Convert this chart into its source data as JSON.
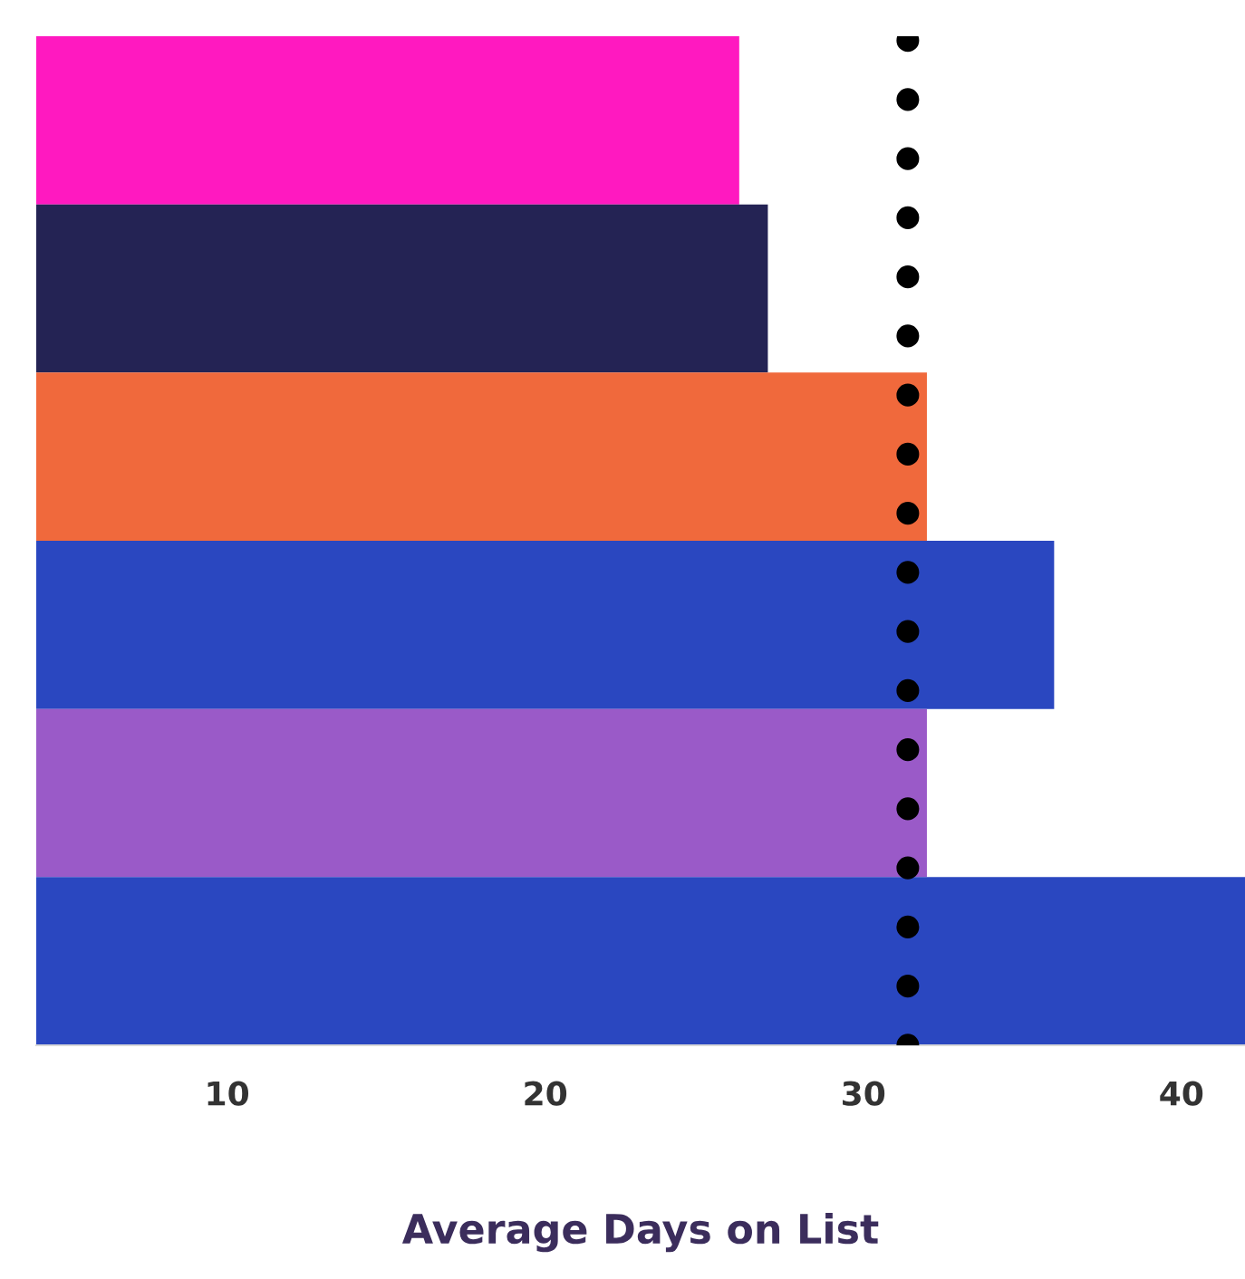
{
  "chart_data": {
    "type": "bar",
    "orientation": "horizontal",
    "xlabel": "Average Days on List",
    "categories": [
      null,
      null,
      null,
      null,
      null,
      null
    ],
    "values": [
      26.1,
      27.0,
      32.0,
      36.0,
      32.0,
      42.0
    ],
    "colors": [
      "#ff19c0",
      "#242354",
      "#f0693c",
      "#2a47c0",
      "#9a5ac8",
      "#2a47c0"
    ],
    "xlim": [
      4,
      42
    ],
    "xticks": [
      10,
      20,
      30,
      40
    ],
    "tick_labels": "x",
    "grid": false,
    "ref_lines": [
      {
        "axis": "x",
        "value": 31.4,
        "color": "#000000",
        "line_style": "dotted"
      }
    ]
  }
}
